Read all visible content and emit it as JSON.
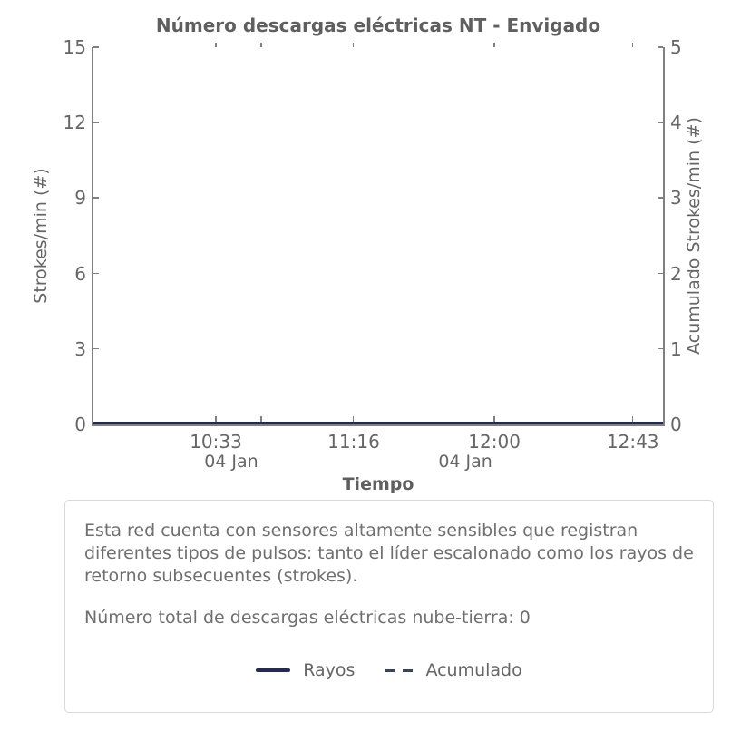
{
  "chart": {
    "title": "Número descargas eléctricas NT - Envigado",
    "x_axis": {
      "title": "Tiempo",
      "ticks": [
        {
          "label": "10:33",
          "pos": 0.215
        },
        {
          "label": "",
          "pos": 0.295
        },
        {
          "label": "11:16",
          "pos": 0.457
        },
        {
          "label": "12:00",
          "pos": 0.704
        },
        {
          "label": "12:43",
          "pos": 0.947
        }
      ],
      "date_labels": [
        {
          "label": "04 Jan",
          "pos": 0.242
        },
        {
          "label": "04 Jan",
          "pos": 0.653
        }
      ]
    },
    "y_left": {
      "title": "Strokes/min (#)",
      "tick_labels": [
        "0",
        "3",
        "6",
        "9",
        "12",
        "15"
      ]
    },
    "y_right": {
      "title": "Acumulado Strokes/min (#)",
      "tick_labels": [
        "0",
        "1",
        "2",
        "3",
        "4",
        "5"
      ]
    }
  },
  "chart_data": {
    "type": "line",
    "title": "Número descargas eléctricas NT - Envigado",
    "xlabel": "Tiempo",
    "ylabel_left": "Strokes/min (#)",
    "ylabel_right": "Acumulado Strokes/min (#)",
    "x_tick_times": [
      "10:33",
      "11:16",
      "12:00",
      "12:43"
    ],
    "x_date": "04 Jan",
    "ylim_left": [
      0,
      15
    ],
    "ylim_right": [
      0,
      5
    ],
    "grid": false,
    "legend_position": "below-in-info-panel",
    "series": [
      {
        "name": "Rayos",
        "axis": "left",
        "line_style": "solid",
        "color": "#232a54",
        "x": [
          "10:33",
          "11:16",
          "12:00",
          "12:43"
        ],
        "values": [
          0,
          0,
          0,
          0
        ]
      },
      {
        "name": "Acumulado",
        "axis": "right",
        "line_style": "dashed",
        "color": "#39426b",
        "x": [
          "10:33",
          "11:16",
          "12:00",
          "12:43"
        ],
        "values": [
          0,
          0,
          0,
          0
        ]
      }
    ],
    "total_cloud_to_ground_discharges": 0
  },
  "info_panel": {
    "paragraph1": "Esta red cuenta con sensores altamente sensibles que registran diferentes tipos de pulsos: tanto el líder escalonado como los rayos de retorno subsecuentes (strokes).",
    "paragraph2": "Número total de descargas eléctricas nube-tierra: 0",
    "legend": [
      {
        "label": "Rayos",
        "style": "solid"
      },
      {
        "label": "Acumulado",
        "style": "dashed"
      }
    ]
  },
  "colors": {
    "rayos_line": "#232a54",
    "acumulado_line": "#39426b",
    "axis": "#808080",
    "text": "#666666",
    "panel_border": "#d9d9d9"
  }
}
